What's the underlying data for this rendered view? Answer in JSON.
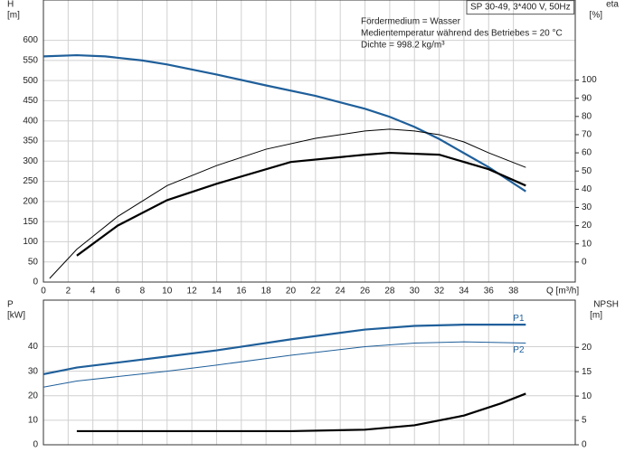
{
  "chart_data": [
    {
      "type": "line",
      "y_label": "H",
      "y_unit": "[m]",
      "y2_label": "eta",
      "y2_unit": "[%]",
      "x_label": "Q [m³/h]",
      "info_box": "SP 30-49, 3*400 V, 50Hz",
      "annotations": [
        "Fördermedium = Wasser",
        "Medientemperatur während des Betriebes = 20 °C",
        "Dichte = 998.2 kg/m³"
      ],
      "xlim": [
        0,
        43
      ],
      "xticks": [
        0,
        2,
        4,
        6,
        8,
        10,
        12,
        14,
        16,
        18,
        20,
        22,
        24,
        26,
        28,
        30,
        32,
        34,
        36,
        38
      ],
      "ylim": [
        0,
        700
      ],
      "yticks": [
        0,
        50,
        100,
        150,
        200,
        250,
        300,
        350,
        400,
        450,
        500,
        550,
        600
      ],
      "y2lim": [
        -11,
        144
      ],
      "y2ticks": [
        0,
        10,
        20,
        30,
        40,
        50,
        60,
        70,
        80,
        90,
        100
      ],
      "grid": true,
      "series": [
        {
          "color": "#1f5f9a",
          "linewidth": 2.2,
          "x": [
            0,
            2.7,
            5,
            8,
            10,
            14,
            18,
            22,
            26,
            28,
            30,
            32,
            34,
            36,
            37,
            39
          ],
          "values": [
            560,
            563,
            560,
            550,
            540,
            515,
            488,
            462,
            430,
            410,
            385,
            355,
            320,
            285,
            265,
            225
          ]
        },
        {
          "color": "#000000",
          "linewidth": 1,
          "axis": "y2",
          "x": [
            0.5,
            2.7,
            6,
            10,
            14,
            18,
            22,
            26,
            28,
            30,
            32,
            34,
            36,
            39
          ],
          "values": [
            -9,
            7,
            25,
            42,
            53,
            62,
            68,
            72,
            73,
            72,
            70,
            66,
            60,
            52
          ]
        },
        {
          "color": "#000000",
          "linewidth": 2.2,
          "axis": "y2",
          "x": [
            2.7,
            6,
            10,
            14,
            20,
            26,
            28,
            32,
            36,
            39
          ],
          "values": [
            3.5,
            20,
            34,
            43,
            55,
            59,
            60,
            59,
            51,
            42
          ]
        }
      ]
    },
    {
      "type": "line",
      "y_label": "P",
      "y_unit": "[kW]",
      "y2_label": "NPSH",
      "y2_unit": "[m]",
      "xlim": [
        0,
        43
      ],
      "xticks": [
        0,
        2,
        4,
        6,
        8,
        10,
        12,
        14,
        16,
        18,
        20,
        22,
        24,
        26,
        28,
        30,
        32,
        34,
        36,
        38
      ],
      "ylim": [
        0,
        59
      ],
      "yticks": [
        0,
        10,
        20,
        30,
        40
      ],
      "y2lim": [
        0,
        29.7
      ],
      "y2ticks": [
        0,
        5,
        10,
        15,
        20
      ],
      "grid": true,
      "series": [
        {
          "name": "P1",
          "color": "#1f5f9a",
          "linewidth": 2.2,
          "x": [
            0,
            2.7,
            10,
            14,
            20,
            26,
            30,
            34,
            39
          ],
          "values": [
            28.8,
            31.5,
            36,
            38.5,
            43,
            47,
            48.5,
            49,
            49
          ]
        },
        {
          "name": "P2",
          "color": "#1f5f9a",
          "linewidth": 1,
          "x": [
            0,
            2.7,
            10,
            14,
            20,
            26,
            30,
            34,
            39
          ],
          "values": [
            23.5,
            26,
            30,
            32.5,
            36.5,
            40,
            41.5,
            42,
            41.5
          ]
        },
        {
          "color": "#000000",
          "linewidth": 2.2,
          "axis": "y2",
          "x": [
            2.7,
            10,
            20,
            26,
            30,
            34,
            37,
            39
          ],
          "values": [
            2.8,
            2.8,
            2.8,
            3.1,
            4,
            6,
            8.5,
            10.5
          ]
        }
      ]
    }
  ]
}
